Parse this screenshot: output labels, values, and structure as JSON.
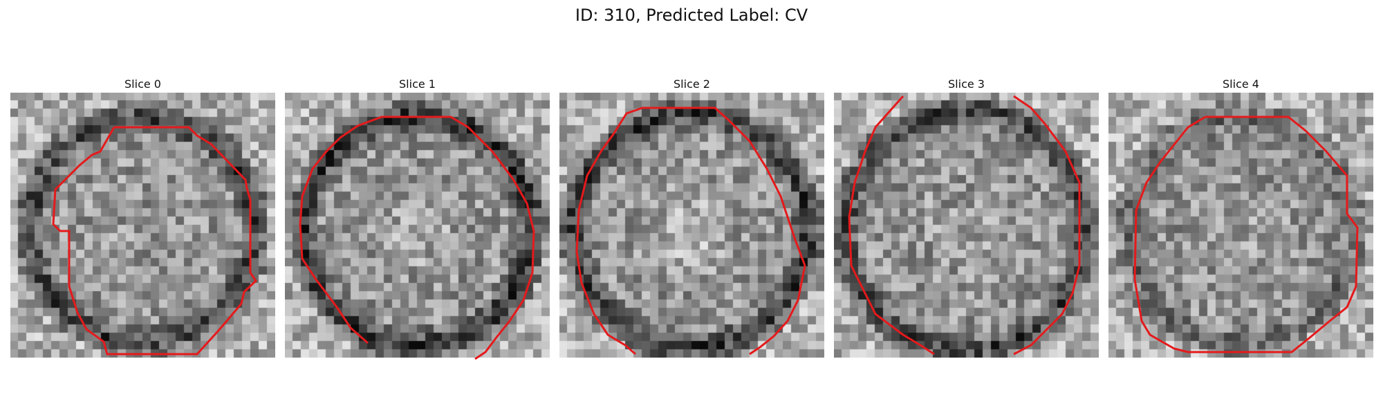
{
  "figure": {
    "title": "ID: 310, Predicted Label: CV"
  },
  "colors": {
    "contour": "#e41a1c",
    "background": "#ffffff"
  },
  "slices": [
    {
      "title": "Slice 0"
    },
    {
      "title": "Slice 1"
    },
    {
      "title": "Slice 2"
    },
    {
      "title": "Slice 3"
    },
    {
      "title": "Slice 4"
    }
  ]
}
